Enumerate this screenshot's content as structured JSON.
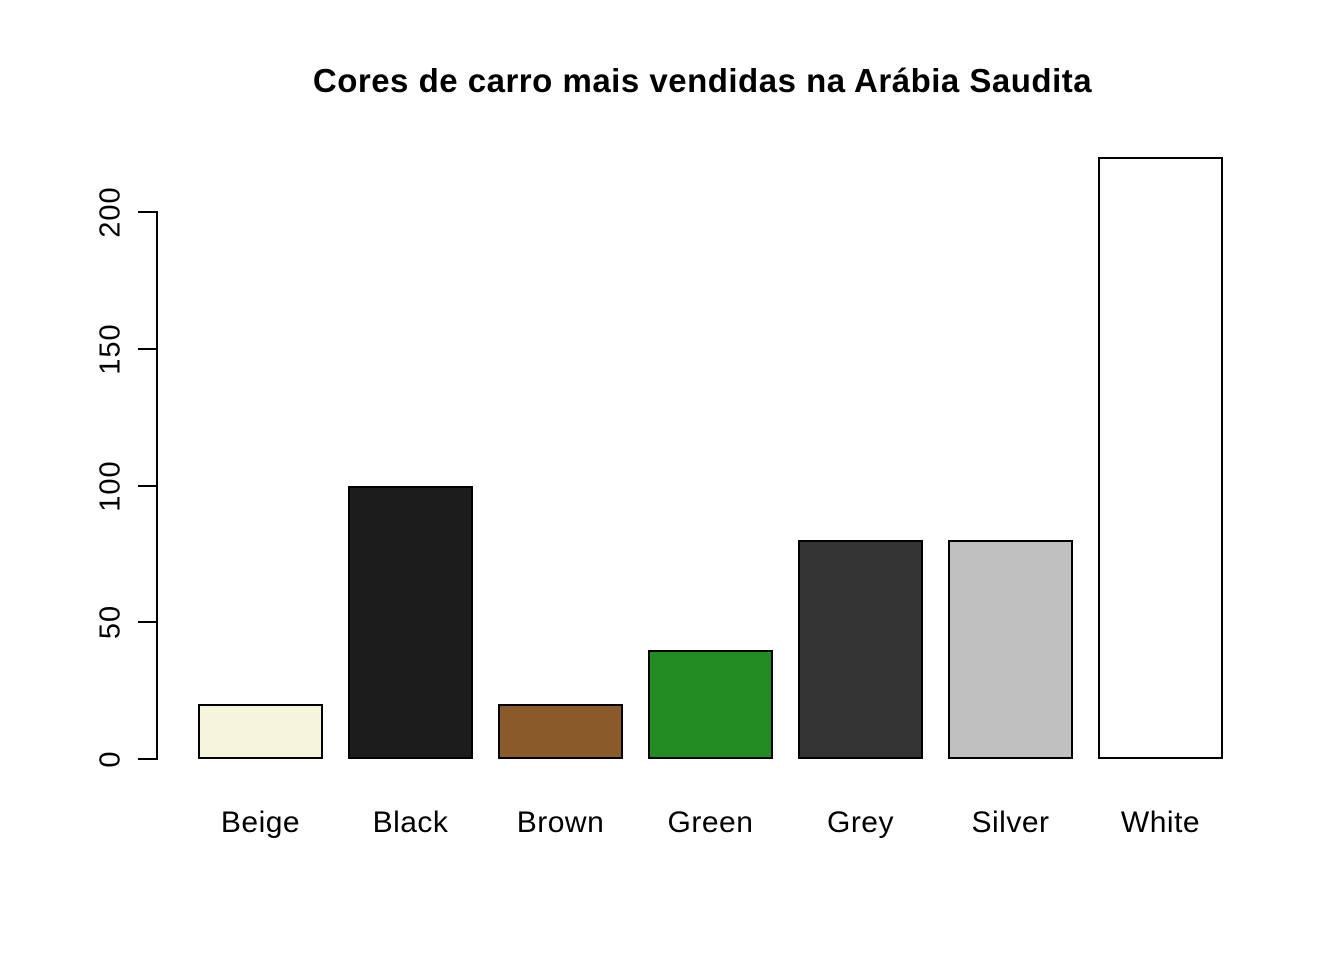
{
  "chart_data": {
    "type": "bar",
    "title": "Cores de carro mais vendidas na Arábia Saudita",
    "categories": [
      "Beige",
      "Black",
      "Brown",
      "Green",
      "Grey",
      "Silver",
      "White"
    ],
    "values": [
      20,
      100,
      20,
      40,
      80,
      80,
      220
    ],
    "bar_colors": [
      "#F5F5DC",
      "#1C1C1C",
      "#8A5A2B",
      "#228B22",
      "#333333",
      "#C0C0C0",
      "#FFFFFF"
    ],
    "bar_border_color": "#000000",
    "xlabel": "",
    "ylabel": "",
    "yticks": [
      0,
      50,
      100,
      150,
      200
    ],
    "ylim": [
      0,
      220
    ],
    "grid": false,
    "legend": false,
    "axis_color": "#000000",
    "background": "#FFFFFF"
  }
}
